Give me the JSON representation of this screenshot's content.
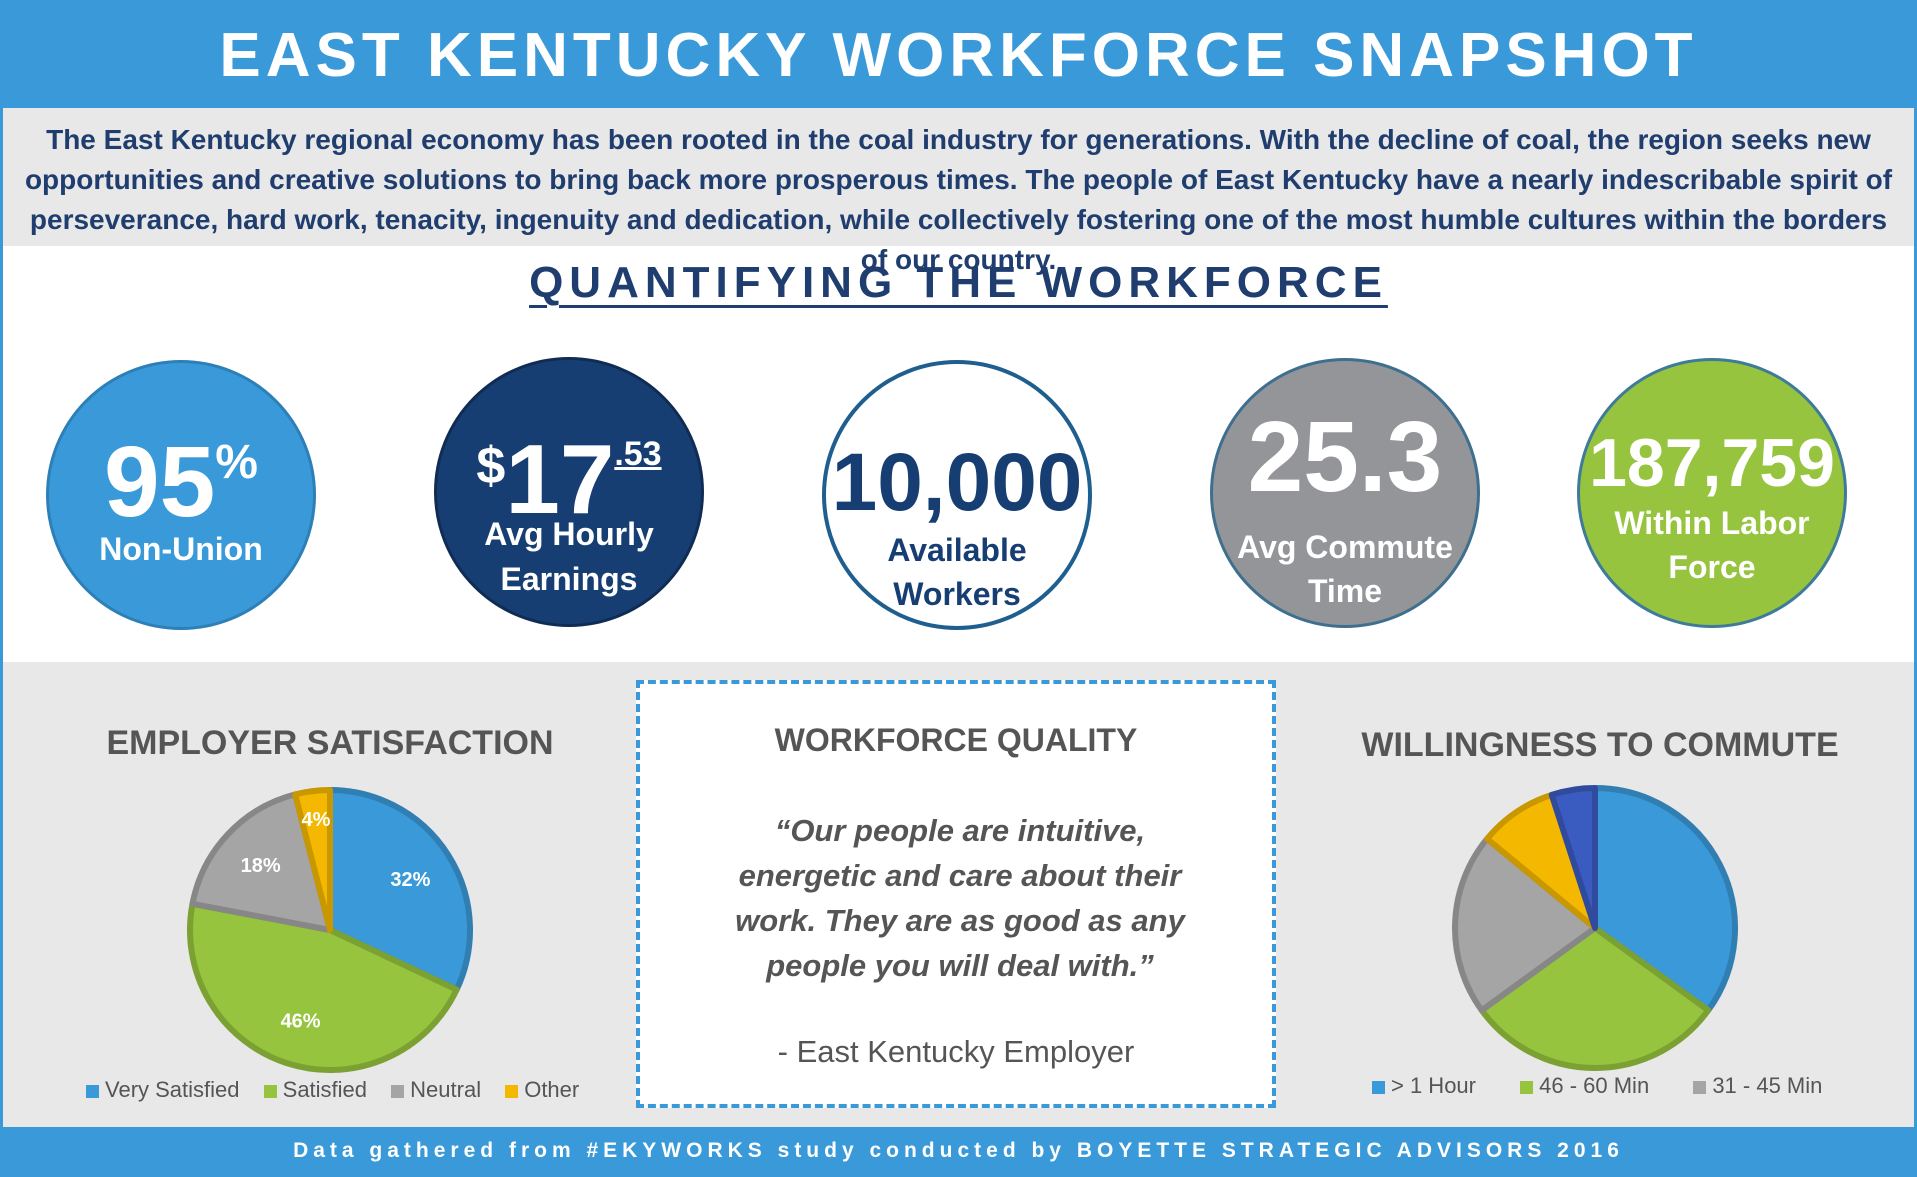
{
  "header": {
    "title": "EAST KENTUCKY WORKFORCE SNAPSHOT"
  },
  "intro": {
    "text": "The East Kentucky regional economy has been rooted in the coal industry for generations.  With the decline of coal, the region seeks new opportunities and creative solutions to bring back more prosperous times.  The people of East Kentucky have a nearly indescribable spirit of perseverance, hard work, tenacity, ingenuity and dedication, while collectively fostering one of the most humble cultures within the borders of our country."
  },
  "section": {
    "title": "QUANTIFYING THE WORKFORCE"
  },
  "stats": [
    {
      "value": "95",
      "suffix": "%",
      "label1": "Non-Union",
      "label2": ""
    },
    {
      "prefix": "$",
      "value": "17",
      "suffix": ".53",
      "label1": "Avg Hourly",
      "label2": "Earnings"
    },
    {
      "value": "10,000",
      "label1": "Available",
      "label2": "Workers"
    },
    {
      "value": "25.3",
      "label1": "Avg Commute",
      "label2": "Time"
    },
    {
      "value": "187,759",
      "label1": "Within Labor",
      "label2": "Force"
    }
  ],
  "quality": {
    "title": "WORKFORCE QUALITY",
    "quote_lines": [
      "“Our people are intuitive,",
      "energetic and care about their",
      "work.  They are as good as any",
      "people you will deal with.”"
    ],
    "author": "- East Kentucky Employer"
  },
  "footer": {
    "text": "Data gathered from #EKYWORKS study conducted by BOYETTE STRATEGIC ADVISORS 2016"
  },
  "colors": {
    "blue": "#3a9ad9",
    "navy": "#173e73",
    "gray": "#949599",
    "green": "#96c43e",
    "gold": "#f5b800",
    "darkblue": "#3a5bbf"
  },
  "chart_data": [
    {
      "type": "pie",
      "title": "EMPLOYER SATISFACTION",
      "categories": [
        "Very Satisfied",
        "Satisfied",
        "Neutral",
        "Other"
      ],
      "values": [
        32,
        46,
        18,
        4
      ],
      "labels": [
        "32%",
        "46%",
        "18%",
        "4%"
      ],
      "colors": [
        "#3a9ad9",
        "#96c43e",
        "#a5a5a5",
        "#f5b800"
      ],
      "legend_position": "bottom"
    },
    {
      "type": "pie",
      "title": "WILLINGNESS TO COMMUTE",
      "categories": [
        "> 1 Hour",
        "46 - 60 Min",
        "31 - 45 Min",
        "",
        ""
      ],
      "legend_entries": [
        "> 1 Hour",
        "46 - 60 Min",
        "31 - 45 Min"
      ],
      "values": [
        35,
        30,
        21,
        9,
        5
      ],
      "colors": [
        "#3a9ad9",
        "#96c43e",
        "#a5a5a5",
        "#f5b800",
        "#3a5bbf"
      ],
      "legend_position": "bottom"
    }
  ]
}
